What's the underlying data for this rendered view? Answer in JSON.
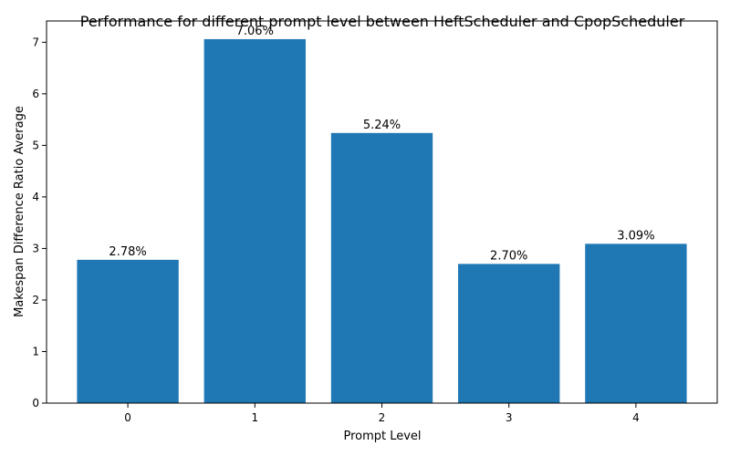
{
  "chart_data": {
    "type": "bar",
    "title": "Performance for different prompt level between HeftScheduler and CpopScheduler",
    "xlabel": "Prompt Level",
    "ylabel": "Makespan Difference Ratio Average",
    "categories": [
      "0",
      "1",
      "2",
      "3",
      "4"
    ],
    "values": [
      2.78,
      7.06,
      5.24,
      2.7,
      3.09
    ],
    "data_labels": [
      "2.78%",
      "7.06%",
      "5.24%",
      "2.70%",
      "3.09%"
    ],
    "yticks": [
      0,
      1,
      2,
      3,
      4,
      5,
      6,
      7
    ],
    "ylim": [
      0,
      7.413
    ],
    "bar_color": "#1f77b4",
    "grid": false,
    "legend": "none"
  }
}
